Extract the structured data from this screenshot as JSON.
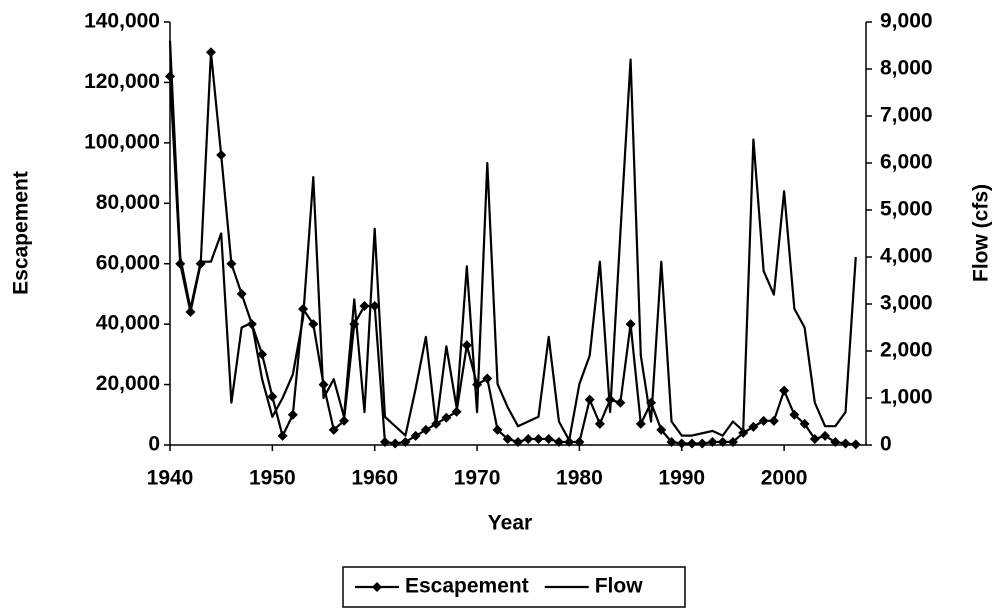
{
  "chart_data": {
    "type": "line",
    "x_label": "Year",
    "y_label": "Escapement",
    "y2_label": "Flow (cfs)",
    "x": [
      1940,
      1941,
      1942,
      1943,
      1944,
      1945,
      1946,
      1947,
      1948,
      1949,
      1950,
      1951,
      1952,
      1953,
      1954,
      1955,
      1956,
      1957,
      1958,
      1959,
      1960,
      1961,
      1962,
      1963,
      1964,
      1965,
      1966,
      1967,
      1968,
      1969,
      1970,
      1971,
      1972,
      1973,
      1974,
      1975,
      1976,
      1977,
      1978,
      1979,
      1980,
      1981,
      1982,
      1983,
      1984,
      1985,
      1986,
      1987,
      1988,
      1989,
      1990,
      1991,
      1992,
      1993,
      1994,
      1995,
      1996,
      1997,
      1998,
      1999,
      2000,
      2001,
      2002,
      2003,
      2004,
      2005,
      2006,
      2007
    ],
    "series": [
      {
        "name": "Escapement",
        "color": "#000000",
        "marker": "diamond",
        "values": [
          122000,
          60000,
          44000,
          60000,
          130000,
          96000,
          60000,
          50000,
          40000,
          30000,
          16000,
          3000,
          10000,
          45000,
          40000,
          20000,
          5000,
          8000,
          40000,
          46000,
          46000,
          1000,
          500,
          1000,
          3000,
          5000,
          7000,
          9000,
          11000,
          33000,
          20000,
          22000,
          5000,
          2000,
          1000,
          2000,
          2000,
          2000,
          1000,
          1000,
          1000,
          15000,
          7000,
          15000,
          14000,
          40000,
          7000,
          14000,
          5000,
          1000,
          500,
          500,
          500,
          1000,
          1000,
          1000,
          4000,
          6000,
          8000,
          8000,
          18000,
          10000,
          7000,
          2000,
          3000,
          1000,
          500,
          200
        ]
      },
      {
        "name": "Flow",
        "color": "#000000",
        "axis": "y2",
        "values": [
          8600,
          4000,
          2900,
          3900,
          3900,
          4500,
          900,
          2500,
          2600,
          1400,
          600,
          1000,
          1500,
          2700,
          5700,
          1000,
          1400,
          600,
          3100,
          700,
          4600,
          600,
          400,
          200,
          1200,
          2300,
          400,
          2100,
          800,
          3800,
          700,
          6000,
          1300,
          800,
          400,
          500,
          600,
          2300,
          500,
          100,
          1300,
          1900,
          3900,
          700,
          4500,
          8200,
          1900,
          500,
          3900,
          500,
          200,
          200,
          250,
          300,
          200,
          500,
          300,
          6500,
          3700,
          3200,
          5400,
          2900,
          2500,
          900,
          400,
          400,
          700,
          4000
        ]
      }
    ],
    "xlim": [
      1940,
      2008
    ],
    "xticks": [
      1940,
      1950,
      1960,
      1970,
      1980,
      1990,
      2000
    ],
    "ylim": [
      0,
      140000
    ],
    "yticks": [
      0,
      {
        "value": 20000,
        "label": "20,000"
      },
      {
        "value": 40000,
        "label": "40,000"
      },
      {
        "value": 60000,
        "label": "60,000"
      },
      {
        "value": 80000,
        "label": "80,000"
      },
      {
        "value": 100000,
        "label": "100,000"
      },
      {
        "value": 120000,
        "label": "120,000"
      },
      {
        "value": 140000,
        "label": "140,000"
      }
    ],
    "y2lim": [
      0,
      9000
    ],
    "y2ticks": [
      0,
      {
        "value": 1000,
        "label": "1,000"
      },
      {
        "value": 2000,
        "label": "2,000"
      },
      {
        "value": 3000,
        "label": "3,000"
      },
      {
        "value": 4000,
        "label": "4,000"
      },
      {
        "value": 5000,
        "label": "5,000"
      },
      {
        "value": 6000,
        "label": "6,000"
      },
      {
        "value": 7000,
        "label": "7,000"
      },
      {
        "value": 8000,
        "label": "8,000"
      },
      {
        "value": 9000,
        "label": "9,000"
      }
    ],
    "legend": "bottom"
  }
}
